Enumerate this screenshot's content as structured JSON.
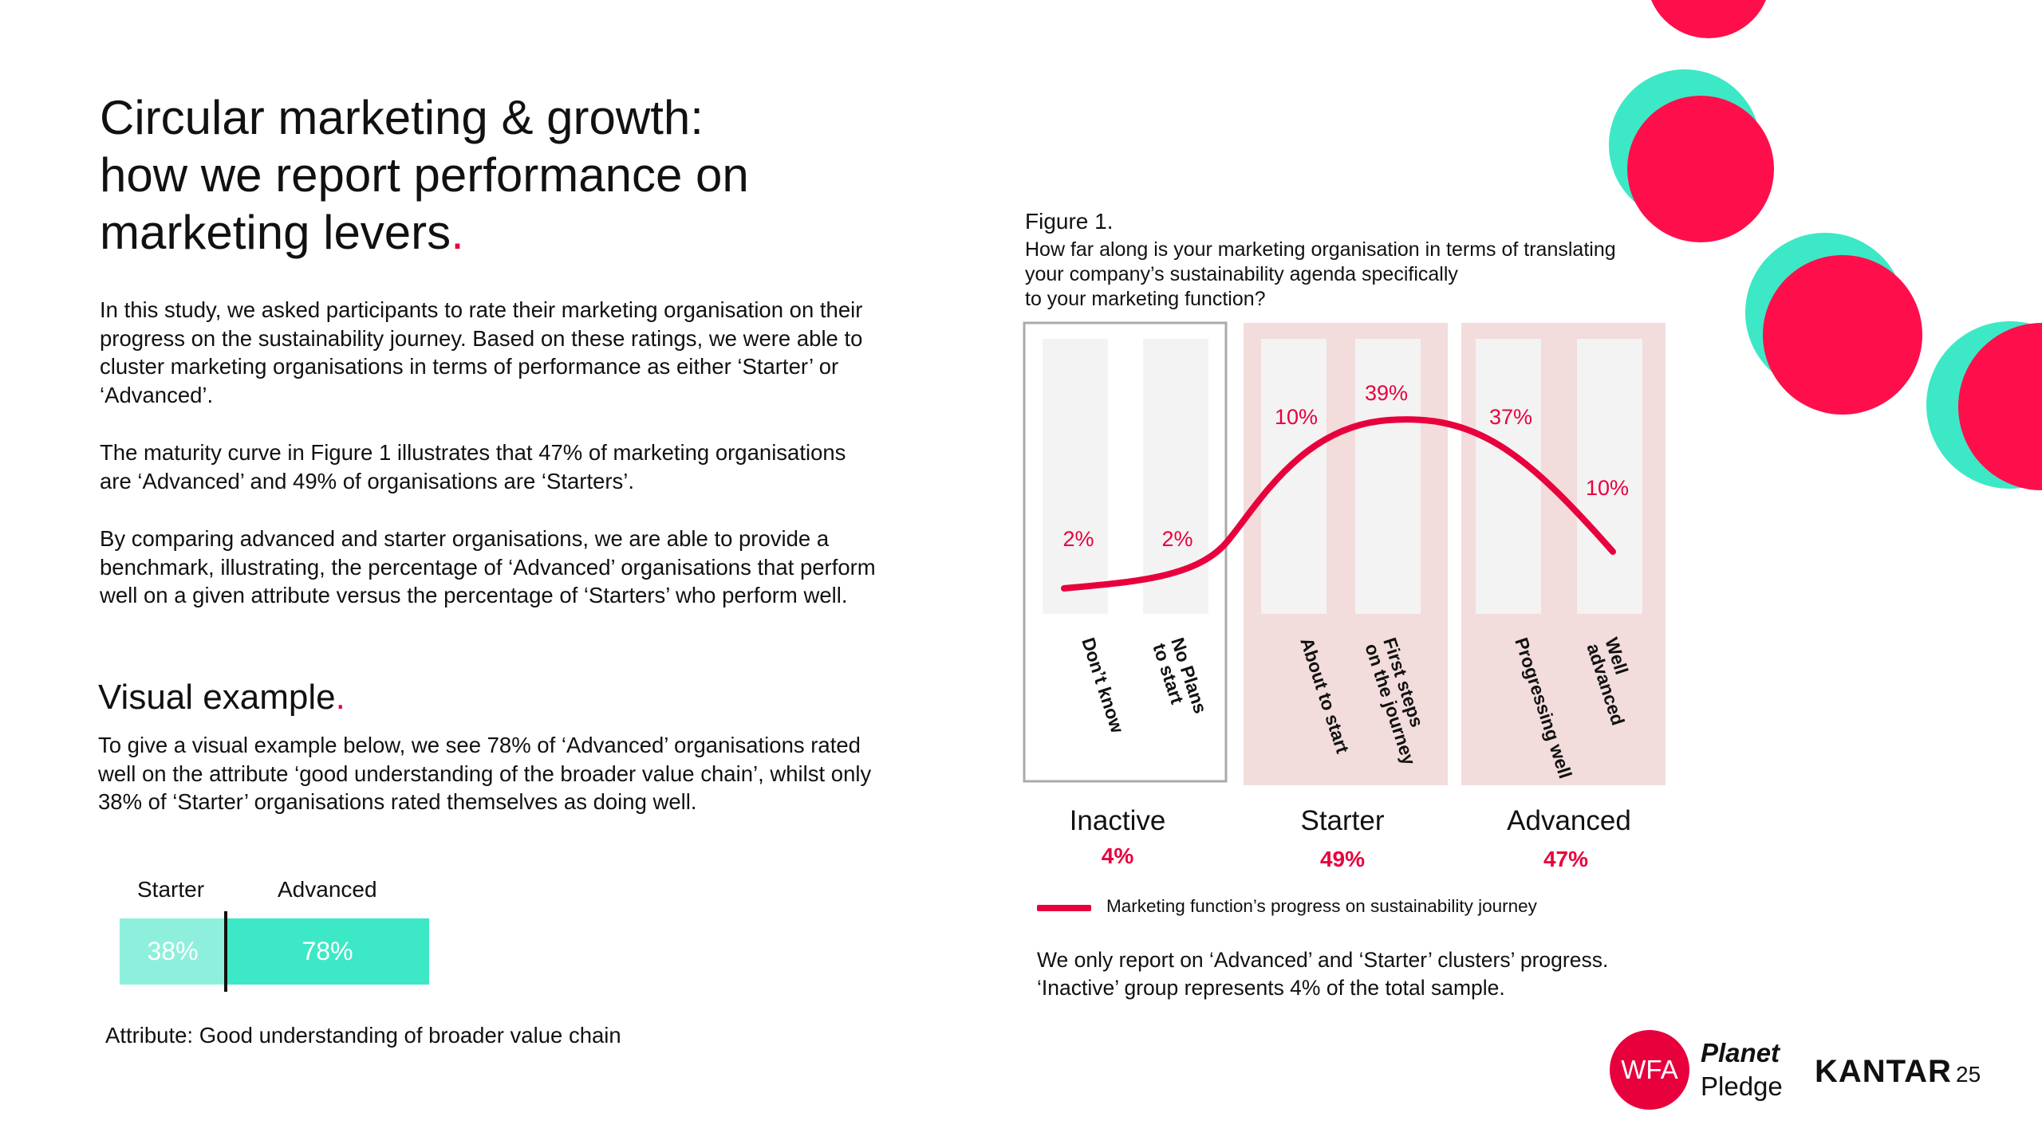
{
  "title": {
    "line1": "Circular marketing & growth:",
    "line2": "how we report performance on",
    "line3": "marketing levers",
    "dot": "."
  },
  "intro": {
    "p1": "In this study, we asked participants to rate their marketing organisation on their progress on the sustainability journey. Based on these ratings, we were able to cluster marketing organisations in terms of performance as either ‘Starter’ or ‘Advanced’.",
    "p2": "The maturity curve in Figure 1 illustrates that 47% of marketing organisations are ‘Advanced’ and 49% of organisations are ‘Starters’.",
    "p3": "By comparing advanced and starter organisations, we are able to provide a benchmark, illustrating, the percentage of ‘Advanced’ organisations that perform well on a given attribute versus the percentage of ‘Starters’ who perform well."
  },
  "visual_example": {
    "heading": "Visual example",
    "dot": ".",
    "text": "To give a visual example below, we see 78% of ‘Advanced’ organisations rated well on the attribute ‘good understanding of the broader value chain’, whilst only 38% of ‘Starter’ organisations rated themselves as doing well.",
    "starter_label": "Starter",
    "advanced_label": "Advanced",
    "starter_value": "38%",
    "advanced_value": "78%",
    "starter_color": "#8ef0dc",
    "advanced_color": "#3de8c6",
    "attribute": "Attribute: Good understanding of broader value chain"
  },
  "figure": {
    "title": "Figure 1.",
    "question_lines": [
      "How far along is your marketing organisation in terms of translating",
      "your company’s sustainability agenda specifically",
      "to your marketing function?"
    ],
    "groups": [
      {
        "name": "Inactive",
        "pct": "4%"
      },
      {
        "name": "Starter",
        "pct": "49%"
      },
      {
        "name": "Advanced",
        "pct": "47%"
      }
    ],
    "legend": "Marketing function’s progress on sustainability journey",
    "note_lines": [
      "We only report on ‘Advanced’ and ‘Starter’ clusters’ progress.",
      "‘Inactive’ group represents 4% of the total sample."
    ]
  },
  "chart_data": {
    "type": "line",
    "title": "Figure 1.",
    "categories": [
      "Don’t know",
      "No Plans to start",
      "About to start",
      "First steps on the journey",
      "Progressing well",
      "Well advanced"
    ],
    "category_lines": [
      [
        "Don’t know"
      ],
      [
        "No Plans",
        "to start"
      ],
      [
        "About to start"
      ],
      [
        "First steps",
        "on the journey"
      ],
      [
        "Progressing well"
      ],
      [
        "Well",
        "advanced"
      ]
    ],
    "series": [
      {
        "name": "Marketing function’s progress on sustainability journey",
        "values": [
          2,
          2,
          10,
          39,
          37,
          10
        ]
      }
    ],
    "data_labels": [
      "2%",
      "2%",
      "10%",
      "39%",
      "37%",
      "10%"
    ],
    "clusters": [
      {
        "name": "Inactive",
        "pct": 4,
        "categories": [
          0,
          1
        ]
      },
      {
        "name": "Starter",
        "pct": 49,
        "categories": [
          2,
          3
        ]
      },
      {
        "name": "Advanced",
        "pct": 47,
        "categories": [
          4,
          5
        ]
      }
    ],
    "line_color": "#e8003d",
    "xlabel": "",
    "ylabel": ""
  },
  "logos": {
    "wfa": "WFA",
    "planet": "Planet",
    "pledge": "Pledge",
    "kantar": "KANTAR"
  },
  "page_number": "25",
  "colors": {
    "accent": "#e8003d",
    "teal": "#3de8c6",
    "cluster_bg": "#f2dcdc",
    "bar_bg": "#f3f3f3"
  }
}
